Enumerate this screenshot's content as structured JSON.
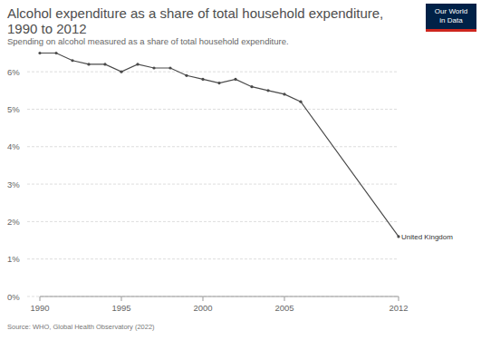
{
  "chart_data": {
    "type": "line",
    "title": "Alcohol expenditure as a share of total household expenditure, 1990 to 2012",
    "subtitle": "Spending on alcohol measured as a share of total household expenditure.",
    "source": "Source: WHO, Global Health Observatory (2022)",
    "logo": "Our World in Data",
    "x": [
      1990,
      1991,
      1992,
      1993,
      1994,
      1995,
      1996,
      1997,
      1998,
      1999,
      2000,
      2001,
      2002,
      2003,
      2004,
      2005,
      2006,
      2012
    ],
    "series": [
      {
        "name": "United Kingdom",
        "color": "#4a4a4a",
        "marker": "circle",
        "values": [
          6.5,
          6.5,
          6.3,
          6.2,
          6.2,
          6.0,
          6.2,
          6.1,
          6.1,
          5.9,
          5.8,
          5.7,
          5.8,
          5.6,
          5.5,
          5.4,
          5.2,
          1.6
        ]
      }
    ],
    "xlim": [
      1990,
      2012
    ],
    "xticks": [
      1990,
      1995,
      2000,
      2005,
      2012
    ],
    "ylim": [
      0,
      6.5
    ],
    "yticks": [
      {
        "value": 0,
        "label": "0%"
      },
      {
        "value": 1,
        "label": "1%"
      },
      {
        "value": 2,
        "label": "2%"
      },
      {
        "value": 3,
        "label": "3%"
      },
      {
        "value": 4,
        "label": "4%"
      },
      {
        "value": 5,
        "label": "5%"
      },
      {
        "value": 6,
        "label": "6%"
      }
    ],
    "grid": true
  }
}
